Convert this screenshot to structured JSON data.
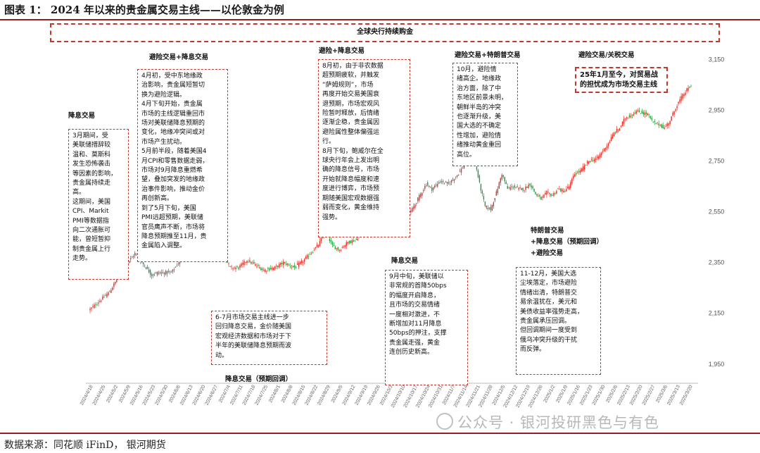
{
  "figure": {
    "title": "图表 1：  2024 年以来的贵金属交易主线——以伦敦金为例",
    "source": "数据来源：同花顺 iFinD，  银河期货",
    "watermark": "公众号 · 银河投研黑色与有色"
  },
  "banner": "全球央行持续购金",
  "phases": {
    "p1": "降息交易",
    "p2": "避险交易+降息交易",
    "p3": "避险+降息交易",
    "p4": "避险交易+特朗普交易",
    "p5": "避险交易/关税交易",
    "p6": "降息交易",
    "p7": "降息交易（预期回调）",
    "p8": "特朗普交易\n+降息交易（预期回调）\n+避险交易"
  },
  "annotations": {
    "a1": "3月期间，受\n美联储措辞较\n温和、莫斯科\n发生恐怖袭击\n等因素的影响，\n贵金属持续走\n高。\n这期间，美国\nCPI、Markit\nPMI等数据指\n向二次通胀可\n能，曾短暂抑\n制贵金属上行\n走势。",
    "a2": "4月初，受中东地缘政\n治影响，贵金属短暂切\n换为避险逻辑。\n4月下旬开始，贵金属\n市场的主线逻辑重回市\n场对美联储降息预期的\n变化，地缘冲突间或对\n市场产生扰动。\n5月前半段，随着美国4\n月CPI和零售数据走弱，\n市场对9月降息重燃希\n望，叠加突发的地缘政\n治事件影响，推动金价\n再创新高。\n到了5月下旬，美国\nPMI远超预期，美联储\n官员鹰声不断，市场将\n降息预期推至11月，贵\n金属陷入调整。",
    "a3": "6-7月市场交易主线进一步\n回归降息交易，金价随美国\n宏观经济数据和市场对于下\n半年的美联储降息预期而波\n动。",
    "a4": "8月初，由于非农数据\n超预期疲软，并触发\n“萨姆规则”，市场\n再度开始交易美国衰\n退预期，市场宏观风\n险暂时释放，后情绪\n逐渐企稳，贵金属因\n避险属性整体偏强运\n行。\n8月下旬，鲍威尔在全\n球央行年会上发出明\n确的降息信号，市场\n开始就降息幅度和速\n度进行博弈，市场预\n期随美国宏观数据强\n弱而变化，黄金维持\n强势。",
    "a5": "9月中旬，美联储以\n非常规的首降50bps\n的幅度开启降息，\n且市场的交易情绪\n一度相对激进，不\n断增加对11月降息\n50bps的押注，支撑\n贵金属走强，黄金\n连创历史新高。",
    "a6": "10月，避险情\n绪高企。地缘政\n治方面，除了中\n东地区前景未明，\n朝鲜半岛的冲突\n也逐渐升级，美\n国大选的不确定\n性增加，避险情\n绪推动黄金重回\n高位。",
    "a7": "11-12月，美国大选\n尘埃落定，市场避险\n情绪出清，特朗普交\n易余温犹在，美元和\n美债收益率强势走高，\n贵金属承压回调。\n但回调期间一度受到\n俄乌冲突升级的干扰\n而反弹。",
    "a8": "25年1月至今，对贸易战的担忧成为市场交易主线"
  },
  "chart_data": {
    "type": "candlestick",
    "series_name": "伦敦金",
    "y_ticks": [
      1950,
      2150,
      2350,
      2550,
      2750,
      2950,
      3150
    ],
    "ylim": [
      1880,
      3190
    ],
    "x_tick_labels": [
      "2024/4/18",
      "2024/4/25",
      "2024/5/2",
      "2024/5/9",
      "2024/5/16",
      "2024/5/23",
      "2024/5/30",
      "2024/6/6",
      "2024/6/13",
      "2024/6/20",
      "2024/6/27",
      "2024/7/4",
      "2024/7/11",
      "2024/7/18",
      "2024/7/25",
      "2024/8/1",
      "2024/8/8",
      "2024/8/15",
      "2024/8/22",
      "2024/8/29",
      "2024/9/5",
      "2024/9/12",
      "2024/9/19",
      "2024/9/26",
      "2024/10/3",
      "2024/10/10",
      "2024/10/17",
      "2024/10/24",
      "2024/10/31",
      "2024/11/7",
      "2024/11/14",
      "2024/11/21",
      "2024/11/28",
      "2024/12/5",
      "2024/12/12",
      "2024/12/19",
      "2024/12/26",
      "2025/1/2",
      "2025/1/9",
      "2025/1/16",
      "2025/1/23",
      "2025/1/30",
      "2025/2/6",
      "2025/2/13",
      "2025/2/20",
      "2025/2/27",
      "2025/3/6",
      "2025/3/13",
      "2025/3/20"
    ],
    "close_path": [
      [
        0,
        2165
      ],
      [
        14,
        2235
      ],
      [
        24,
        2330
      ],
      [
        32,
        2385
      ],
      [
        40,
        2330
      ],
      [
        44,
        2300
      ],
      [
        48,
        2310
      ],
      [
        58,
        2310
      ],
      [
        64,
        2355
      ],
      [
        71,
        2395
      ],
      [
        78,
        2420
      ],
      [
        86,
        2435
      ],
      [
        92,
        2380
      ],
      [
        96,
        2370
      ],
      [
        100,
        2330
      ],
      [
        106,
        2330
      ],
      [
        112,
        2360
      ],
      [
        118,
        2340
      ],
      [
        124,
        2320
      ],
      [
        132,
        2330
      ],
      [
        138,
        2350
      ],
      [
        146,
        2330
      ],
      [
        152,
        2355
      ],
      [
        158,
        2390
      ],
      [
        163,
        2420
      ],
      [
        168,
        2475
      ],
      [
        173,
        2415
      ],
      [
        178,
        2400
      ],
      [
        184,
        2430
      ],
      [
        190,
        2440
      ],
      [
        194,
        2480
      ],
      [
        200,
        2510
      ],
      [
        206,
        2505
      ],
      [
        212,
        2500
      ],
      [
        218,
        2515
      ],
      [
        224,
        2520
      ],
      [
        230,
        2560
      ],
      [
        236,
        2620
      ],
      [
        240,
        2660
      ],
      [
        244,
        2640
      ],
      [
        250,
        2670
      ],
      [
        256,
        2660
      ],
      [
        262,
        2695
      ],
      [
        268,
        2740
      ],
      [
        272,
        2770
      ],
      [
        275,
        2745
      ],
      [
        278,
        2660
      ],
      [
        282,
        2570
      ],
      [
        286,
        2560
      ],
      [
        290,
        2625
      ],
      [
        294,
        2700
      ],
      [
        298,
        2640
      ],
      [
        302,
        2650
      ],
      [
        306,
        2640
      ],
      [
        310,
        2640
      ],
      [
        314,
        2660
      ],
      [
        318,
        2620
      ],
      [
        322,
        2600
      ],
      [
        326,
        2625
      ],
      [
        330,
        2615
      ],
      [
        334,
        2640
      ],
      [
        338,
        2630
      ],
      [
        342,
        2650
      ],
      [
        346,
        2700
      ],
      [
        350,
        2710
      ],
      [
        356,
        2750
      ],
      [
        362,
        2760
      ],
      [
        366,
        2790
      ],
      [
        370,
        2820
      ],
      [
        374,
        2860
      ],
      [
        378,
        2880
      ],
      [
        382,
        2920
      ],
      [
        386,
        2930
      ],
      [
        390,
        2945
      ],
      [
        394,
        2940
      ],
      [
        398,
        2935
      ],
      [
        402,
        2900
      ],
      [
        406,
        2895
      ],
      [
        410,
        2880
      ],
      [
        414,
        2910
      ],
      [
        418,
        2960
      ],
      [
        422,
        3000
      ],
      [
        426,
        3030
      ],
      [
        428,
        3040
      ]
    ]
  }
}
